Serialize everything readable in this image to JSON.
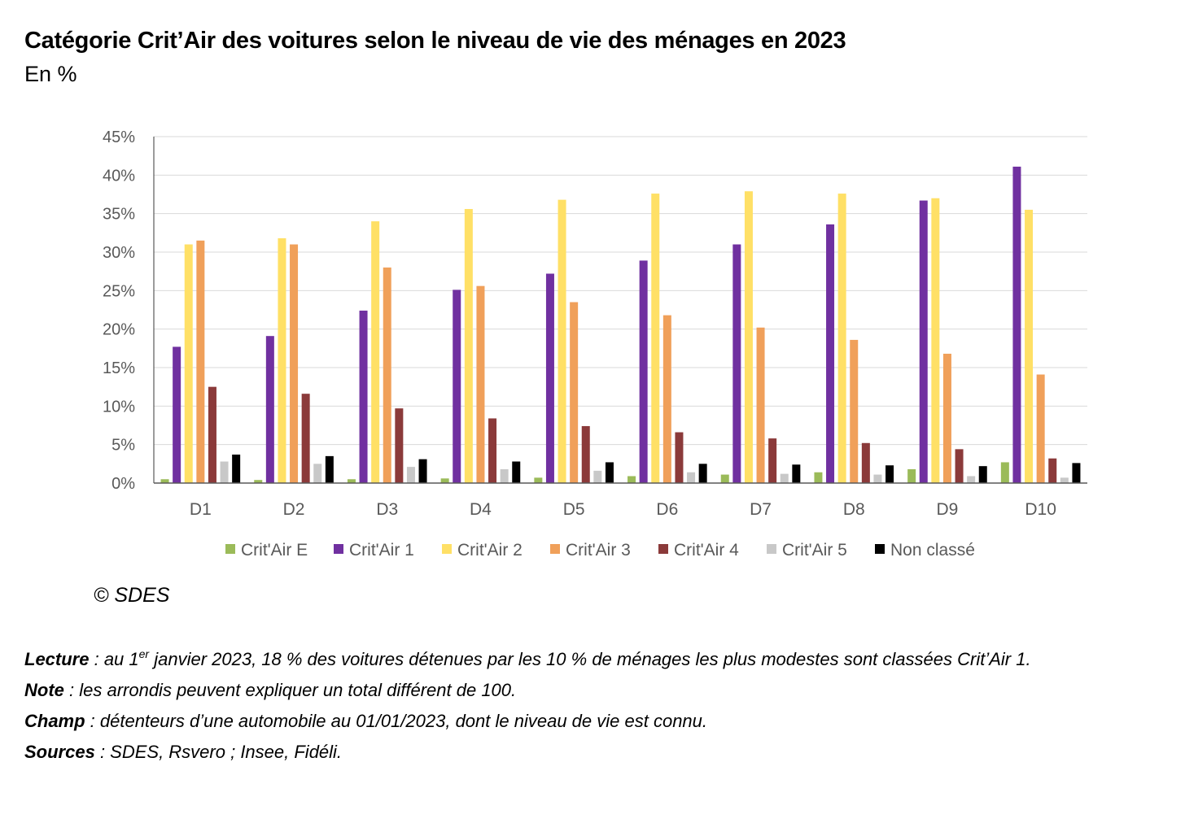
{
  "header": {
    "title": "Catégorie Crit’Air des voitures selon le niveau de vie des ménages en 2023",
    "subtitle": "En %"
  },
  "colors": {
    "Crit'Air E": "#9bbb59",
    "Crit'Air 1": "#7030a0",
    "Crit'Air 2": "#ffe066",
    "Crit'Air 3": "#f0a05a",
    "Crit'Air 4": "#8b3a3a",
    "Crit'Air 5": "#c8c8c8",
    "Non classé": "#000000",
    "grid": "#d9d9d9",
    "axis": "#595959"
  },
  "chart_data": {
    "type": "bar",
    "title": "Catégorie Crit’Air des voitures selon le niveau de vie des ménages en 2023",
    "xlabel": "",
    "ylabel": "En %",
    "ylim": [
      0,
      45
    ],
    "yticks": [
      "0%",
      "5%",
      "10%",
      "15%",
      "20%",
      "25%",
      "30%",
      "35%",
      "40%",
      "45%"
    ],
    "grid": true,
    "legend_position": "bottom",
    "categories": [
      "D1",
      "D2",
      "D3",
      "D4",
      "D5",
      "D6",
      "D7",
      "D8",
      "D9",
      "D10"
    ],
    "series": [
      {
        "name": "Crit'Air E",
        "values": [
          0.5,
          0.4,
          0.5,
          0.6,
          0.7,
          0.9,
          1.1,
          1.4,
          1.8,
          2.7
        ]
      },
      {
        "name": "Crit'Air 1",
        "values": [
          17.7,
          19.1,
          22.4,
          25.1,
          27.2,
          28.9,
          31.0,
          33.6,
          36.7,
          41.1
        ]
      },
      {
        "name": "Crit'Air 2",
        "values": [
          31.0,
          31.8,
          34.0,
          35.6,
          36.8,
          37.6,
          37.9,
          37.6,
          37.0,
          35.5
        ]
      },
      {
        "name": "Crit'Air 3",
        "values": [
          31.5,
          31.0,
          28.0,
          25.6,
          23.5,
          21.8,
          20.2,
          18.6,
          16.8,
          14.1
        ]
      },
      {
        "name": "Crit'Air 4",
        "values": [
          12.5,
          11.6,
          9.7,
          8.4,
          7.4,
          6.6,
          5.8,
          5.2,
          4.4,
          3.2
        ]
      },
      {
        "name": "Crit'Air 5",
        "values": [
          2.8,
          2.5,
          2.1,
          1.8,
          1.6,
          1.4,
          1.2,
          1.1,
          0.9,
          0.7
        ]
      },
      {
        "name": "Non classé",
        "values": [
          3.7,
          3.5,
          3.1,
          2.8,
          2.7,
          2.5,
          2.4,
          2.3,
          2.2,
          2.6
        ]
      }
    ]
  },
  "credit": "© SDES",
  "notes": [
    {
      "label": "Lecture",
      "text_before": " : au 1",
      "sup": "er",
      "text_after": " janvier 2023, 18 % des voitures détenues par les 10 % de ménages les plus modestes sont classées Crit’Air 1."
    },
    {
      "label": "Note",
      "text_before": " : les arrondis peuvent expliquer un total différent de 100.",
      "sup": "",
      "text_after": ""
    },
    {
      "label": "Champ",
      "text_before": " : détenteurs d’une automobile au 01/01/2023, dont le niveau de vie est connu.",
      "sup": "",
      "text_after": ""
    },
    {
      "label": "Sources",
      "text_before": " : SDES, Rsvero ; Insee, Fidéli.",
      "sup": "",
      "text_after": ""
    }
  ]
}
